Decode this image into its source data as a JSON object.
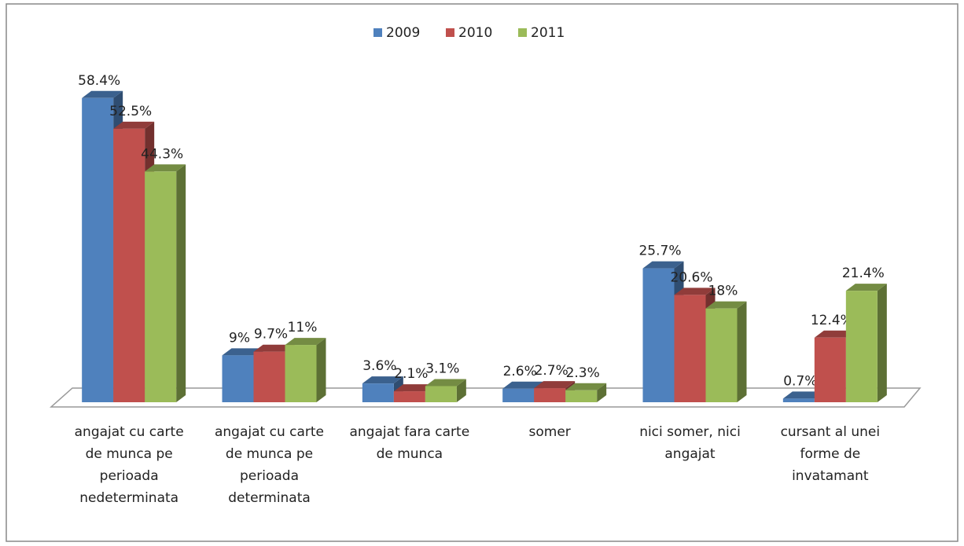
{
  "chart_data": {
    "type": "bar3d",
    "categories": [
      "angajat cu carte de munca pe perioada nedeterminata",
      "angajat cu carte de munca pe perioada determinata",
      "angajat fara carte de munca",
      "somer",
      "nici somer, nici angajat",
      "cursant al unei forme de invatamant"
    ],
    "series": [
      {
        "name": "2009",
        "color": "#4f81bd",
        "values": [
          58.4,
          9,
          3.6,
          2.6,
          25.7,
          0.7
        ],
        "value_labels": [
          "58.4%",
          "9%",
          "3.6%",
          "2.6%",
          "25.7%",
          "0.7%"
        ]
      },
      {
        "name": "2010",
        "color": "#c0504d",
        "values": [
          52.5,
          9.7,
          2.1,
          2.7,
          20.6,
          12.4
        ],
        "value_labels": [
          "52.5%",
          "9.7%",
          "2.1%",
          "2.7%",
          "20.6%",
          "12.4%"
        ]
      },
      {
        "name": "2011",
        "color": "#9bbb59",
        "values": [
          44.3,
          11,
          3.1,
          2.3,
          18,
          21.4
        ],
        "value_labels": [
          "44.3%",
          "11%",
          "3.1%",
          "2.3%",
          "18%",
          "21.4%"
        ]
      }
    ],
    "legend": "top"
  }
}
